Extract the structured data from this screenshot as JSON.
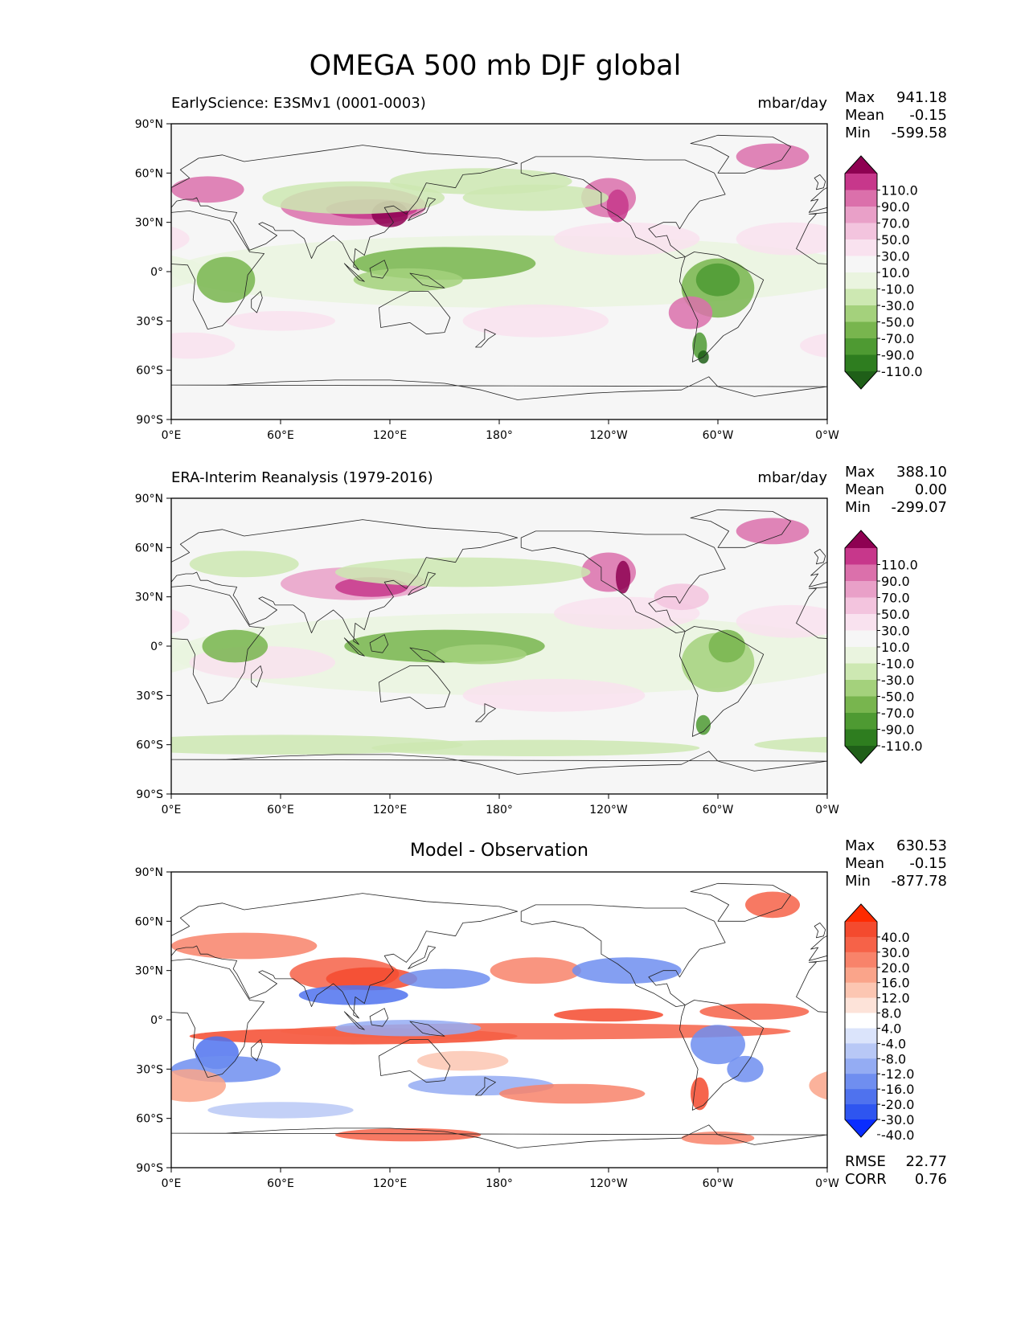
{
  "figure": {
    "title": "OMEGA 500 mb DJF global"
  },
  "axes": {
    "lat_ticks": [
      "90°N",
      "60°N",
      "30°N",
      "0°",
      "30°S",
      "60°S",
      "90°S"
    ],
    "lon_ticks": [
      "0°E",
      "60°E",
      "120°E",
      "180°",
      "120°W",
      "60°W",
      "0°W"
    ]
  },
  "colors": {
    "pink_green": [
      "#1f5f18",
      "#2e7d1f",
      "#4e9a32",
      "#78b54e",
      "#a4d17c",
      "#cde8b2",
      "#eaf4df",
      "#f6f6f6",
      "#f9e2ef",
      "#f3c4de",
      "#e9a0c8",
      "#db70ab",
      "#c7378b",
      "#8e0152"
    ],
    "blue_red": [
      "#0a2dff",
      "#2e55f0",
      "#4f72ee",
      "#6f8ef0",
      "#94acf3",
      "#b8c8f6",
      "#dbe4fb",
      "#ffffff",
      "#fde3d9",
      "#fcc6b2",
      "#faa48a",
      "#f8836a",
      "#f66248",
      "#f44a2e",
      "#ff2a00"
    ]
  },
  "chart_data": [
    {
      "type": "heatmap",
      "panel": "test",
      "title_left": "EarlyScience: E3SMv1 (0001-0003)",
      "title_right": "mbar/day",
      "stats": [
        {
          "label": "Max",
          "value": "941.18"
        },
        {
          "label": "Mean",
          "value": "-0.15"
        },
        {
          "label": "Min",
          "value": "-599.58"
        }
      ],
      "colorbar": {
        "labels": [
          "110.0",
          "90.0",
          "70.0",
          "50.0",
          "30.0",
          "10.0",
          "-10.0",
          "-30.0",
          "-50.0",
          "-70.0",
          "-90.0",
          "-110.0"
        ],
        "extend": "both"
      },
      "xlim": [
        0,
        360
      ],
      "ylim": [
        -90,
        90
      ]
    },
    {
      "type": "heatmap",
      "panel": "reference",
      "title_left": "ERA-Interim Reanalysis (1979-2016)",
      "title_right": "mbar/day",
      "stats": [
        {
          "label": "Max",
          "value": "388.10"
        },
        {
          "label": "Mean",
          "value": "0.00"
        },
        {
          "label": "Min",
          "value": "-299.07"
        }
      ],
      "colorbar": {
        "labels": [
          "110.0",
          "90.0",
          "70.0",
          "50.0",
          "30.0",
          "10.0",
          "-10.0",
          "-30.0",
          "-50.0",
          "-70.0",
          "-90.0",
          "-110.0"
        ],
        "extend": "both"
      },
      "xlim": [
        0,
        360
      ],
      "ylim": [
        -90,
        90
      ]
    },
    {
      "type": "heatmap",
      "panel": "difference",
      "title_center": "Model - Observation",
      "stats": [
        {
          "label": "Max",
          "value": "630.53"
        },
        {
          "label": "Mean",
          "value": "-0.15"
        },
        {
          "label": "Min",
          "value": "-877.78"
        }
      ],
      "colorbar": {
        "labels": [
          "40.0",
          "30.0",
          "20.0",
          "16.0",
          "12.0",
          "8.0",
          "4.0",
          "-4.0",
          "-8.0",
          "-12.0",
          "-16.0",
          "-20.0",
          "-30.0",
          "-40.0"
        ],
        "extend": "both"
      },
      "metrics": [
        {
          "label": "RMSE",
          "value": "22.77"
        },
        {
          "label": "CORR",
          "value": "0.76"
        }
      ],
      "xlim": [
        0,
        360
      ],
      "ylim": [
        -90,
        90
      ]
    }
  ]
}
